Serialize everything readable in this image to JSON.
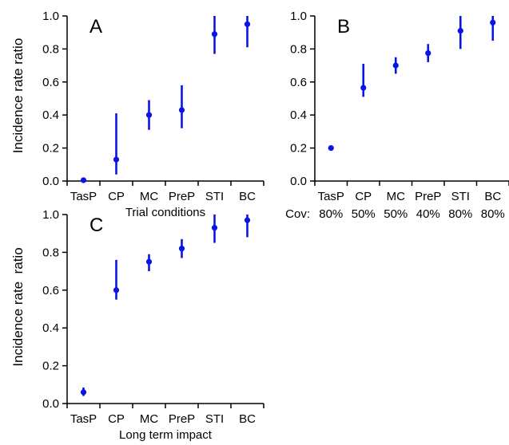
{
  "colors": {
    "marker": "#0a14e6",
    "axis": "#000000",
    "background": "#ffffff"
  },
  "chart_data": [
    {
      "type": "scatter",
      "panel": "A",
      "categories": [
        "TasP",
        "CP",
        "MC",
        "PreP",
        "STI",
        "BC"
      ],
      "series": [
        {
          "values": [
            0.005,
            0.13,
            0.4,
            0.43,
            0.89,
            0.95
          ],
          "lower": [
            0.0,
            0.04,
            0.31,
            0.32,
            0.77,
            0.81
          ],
          "upper": [
            0.015,
            0.41,
            0.49,
            0.58,
            1.0,
            1.0
          ]
        }
      ],
      "title": "",
      "xlabel": "Trial conditions",
      "ylabel": "Incidence rate ratio",
      "ylim": [
        0.0,
        1.0
      ],
      "yticks": [
        "0.0",
        "0.2",
        "0.4",
        "0.6",
        "0.8",
        "1.0"
      ],
      "coverage_label": "",
      "coverage": [],
      "grid": false
    },
    {
      "type": "scatter",
      "panel": "B",
      "categories": [
        "TasP",
        "CP",
        "MC",
        "PreP",
        "STI",
        "BC"
      ],
      "series": [
        {
          "values": [
            0.2,
            0.565,
            0.7,
            0.775,
            0.91,
            0.96
          ],
          "lower": [
            0.2,
            0.51,
            0.65,
            0.72,
            0.8,
            0.85
          ],
          "upper": [
            0.2,
            0.71,
            0.75,
            0.83,
            1.0,
            1.0
          ]
        }
      ],
      "title": "",
      "xlabel": "",
      "ylabel": "",
      "ylim": [
        0.0,
        1.0
      ],
      "yticks": [
        "0.0",
        "0.2",
        "0.4",
        "0.6",
        "0.8",
        "1.0"
      ],
      "coverage_label": "Cov:",
      "coverage": [
        "80%",
        "50%",
        "50%",
        "40%",
        "80%",
        "80%"
      ],
      "grid": false
    },
    {
      "type": "scatter",
      "panel": "C",
      "categories": [
        "TasP",
        "CP",
        "MC",
        "PreP",
        "STI",
        "BC"
      ],
      "series": [
        {
          "values": [
            0.06,
            0.6,
            0.75,
            0.82,
            0.93,
            0.97
          ],
          "lower": [
            0.04,
            0.55,
            0.7,
            0.77,
            0.85,
            0.88
          ],
          "upper": [
            0.085,
            0.76,
            0.79,
            0.87,
            1.0,
            1.0
          ]
        }
      ],
      "title": "",
      "xlabel": "Long term impact",
      "ylabel": "Incidence rate  ratio",
      "ylim": [
        0.0,
        1.0
      ],
      "yticks": [
        "0.0",
        "0.2",
        "0.4",
        "0.6",
        "0.8",
        "1.0"
      ],
      "coverage_label": "",
      "coverage": [],
      "grid": false
    }
  ]
}
